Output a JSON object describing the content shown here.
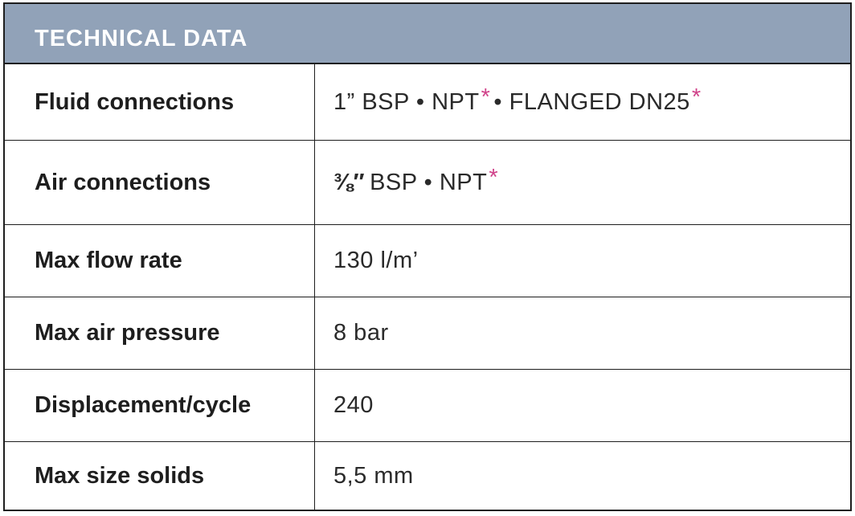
{
  "title": "TECHNICAL DATA",
  "accent_color": "#d0438a",
  "header_color": "#91a2b8",
  "rows": [
    {
      "label": "Fluid connections",
      "parts": [
        "1” BSP • NPT",
        "*",
        "• FLANGED DN25",
        "*"
      ]
    },
    {
      "label": "Air connections",
      "parts": [
        "⅜″",
        "BSP • NPT",
        "*"
      ]
    },
    {
      "label": "Max flow rate",
      "value": "130 l/m’"
    },
    {
      "label": "Max air pressure",
      "value": "8 bar"
    },
    {
      "label": "Displacement/cycle",
      "value": "240"
    },
    {
      "label": "Max size solids",
      "value": "5,5 mm"
    }
  ]
}
